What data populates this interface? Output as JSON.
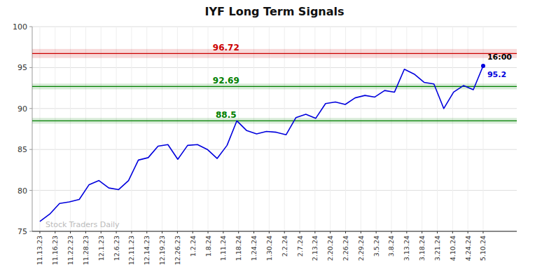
{
  "chart_data": {
    "type": "line",
    "title": "IYF Long Term Signals",
    "watermark": "Stock Traders Daily",
    "values": [
      76.2,
      77.1,
      78.4,
      78.6,
      78.9,
      80.7,
      81.2,
      80.3,
      80.1,
      81.2,
      83.7,
      84.0,
      85.4,
      85.6,
      83.8,
      85.5,
      85.6,
      85.0,
      83.9,
      85.5,
      88.5,
      87.3,
      86.9,
      87.2,
      87.1,
      86.8,
      88.9,
      89.3,
      88.8,
      90.6,
      90.8,
      90.5,
      91.3,
      91.6,
      91.4,
      92.2,
      92.0,
      94.8,
      94.2,
      93.2,
      93.0,
      90.0,
      92.0,
      92.8,
      92.3,
      95.2
    ],
    "color": "#0000dd",
    "xlim": [
      -0.5,
      31.2
    ],
    "xticks": [
      {
        "value": 0,
        "label": "11.13.23"
      },
      {
        "value": 1,
        "label": "11.16.23"
      },
      {
        "value": 2,
        "label": "11.22.23"
      },
      {
        "value": 3,
        "label": "11.28.23"
      },
      {
        "value": 4,
        "label": "12.1.23"
      },
      {
        "value": 5,
        "label": "12.6.23"
      },
      {
        "value": 6,
        "label": "12.11.23"
      },
      {
        "value": 7,
        "label": "12.14.23"
      },
      {
        "value": 8,
        "label": "12.19.23"
      },
      {
        "value": 9,
        "label": "12.26.23"
      },
      {
        "value": 10,
        "label": "1.2.24"
      },
      {
        "value": 11,
        "label": "1.8.24"
      },
      {
        "value": 12,
        "label": "1.11.24"
      },
      {
        "value": 13,
        "label": "1.18.24"
      },
      {
        "value": 14,
        "label": "1.24.24"
      },
      {
        "value": 15,
        "label": "1.30.24"
      },
      {
        "value": 16,
        "label": "2.2.24"
      },
      {
        "value": 17,
        "label": "2.7.24"
      },
      {
        "value": 18,
        "label": "2.13.24"
      },
      {
        "value": 19,
        "label": "2.20.24"
      },
      {
        "value": 20,
        "label": "2.26.24"
      },
      {
        "value": 21,
        "label": "2.29.24"
      },
      {
        "value": 22,
        "label": "3.5.24"
      },
      {
        "value": 23,
        "label": "3.8.24"
      },
      {
        "value": 24,
        "label": "3.13.24"
      },
      {
        "value": 25,
        "label": "3.18.24"
      },
      {
        "value": 26,
        "label": "3.21.24"
      },
      {
        "value": 27,
        "label": "4.10.24"
      },
      {
        "value": 28,
        "label": "4.24.24"
      },
      {
        "value": 29,
        "label": "5.10.24"
      }
    ],
    "ylim": [
      75,
      100
    ],
    "yticks": [
      75,
      80,
      85,
      90,
      95,
      100
    ],
    "grid": true,
    "reference_lines": [
      {
        "y": 96.72,
        "label": "96.72",
        "color": "#cc0000",
        "band": 0.55
      },
      {
        "y": 92.69,
        "label": "92.69",
        "color": "#008000",
        "band": 0.35
      },
      {
        "y": 88.5,
        "label": "88.5",
        "color": "#008000",
        "band": 0.35
      }
    ],
    "annotations": [
      {
        "text": "16:00"
      },
      {
        "text": "95.2"
      }
    ]
  }
}
